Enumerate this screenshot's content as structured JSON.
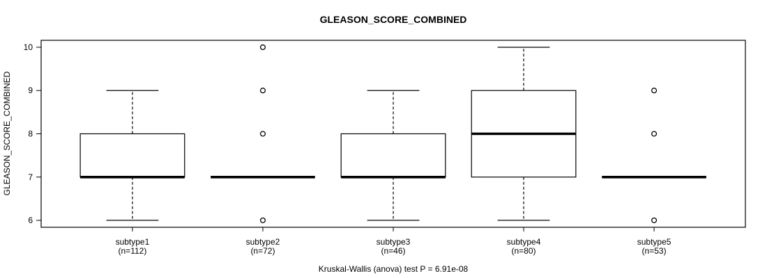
{
  "chart_data": {
    "type": "boxplot",
    "title": "GLEASON_SCORE_COMBINED",
    "ylabel": "GLEASON_SCORE_COMBINED",
    "xlabel": "",
    "footer": "Kruskal-Wallis (anova) test P = 6.91e-08",
    "p_value": "6.91e-08",
    "ylim": [
      6,
      10
    ],
    "yticks": [
      6,
      7,
      8,
      9,
      10
    ],
    "grid": false,
    "legend": "none",
    "frame": true,
    "line_color": "#000000",
    "box_fill": "#ffffff",
    "categories": [
      "subtype1",
      "subtype2",
      "subtype3",
      "subtype4",
      "subtype5"
    ],
    "groups": [
      {
        "label": "subtype1",
        "n": 112,
        "n_label": "(n=112)",
        "whisker_low": 6,
        "q1": 7,
        "median": 7,
        "q3": 8,
        "whisker_high": 9,
        "outliers": []
      },
      {
        "label": "subtype2",
        "n": 72,
        "n_label": "(n=72)",
        "whisker_low": 7,
        "q1": 7,
        "median": 7,
        "q3": 7,
        "whisker_high": 7,
        "outliers": [
          6,
          8,
          9,
          10
        ]
      },
      {
        "label": "subtype3",
        "n": 46,
        "n_label": "(n=46)",
        "whisker_low": 6,
        "q1": 7,
        "median": 7,
        "q3": 8,
        "whisker_high": 9,
        "outliers": []
      },
      {
        "label": "subtype4",
        "n": 80,
        "n_label": "(n=80)",
        "whisker_low": 6,
        "q1": 7,
        "median": 8,
        "q3": 9,
        "whisker_high": 10,
        "outliers": []
      },
      {
        "label": "subtype5",
        "n": 53,
        "n_label": "(n=53)",
        "whisker_low": 7,
        "q1": 7,
        "median": 7,
        "q3": 7,
        "whisker_high": 7,
        "outliers": [
          6,
          8,
          9
        ]
      }
    ]
  }
}
